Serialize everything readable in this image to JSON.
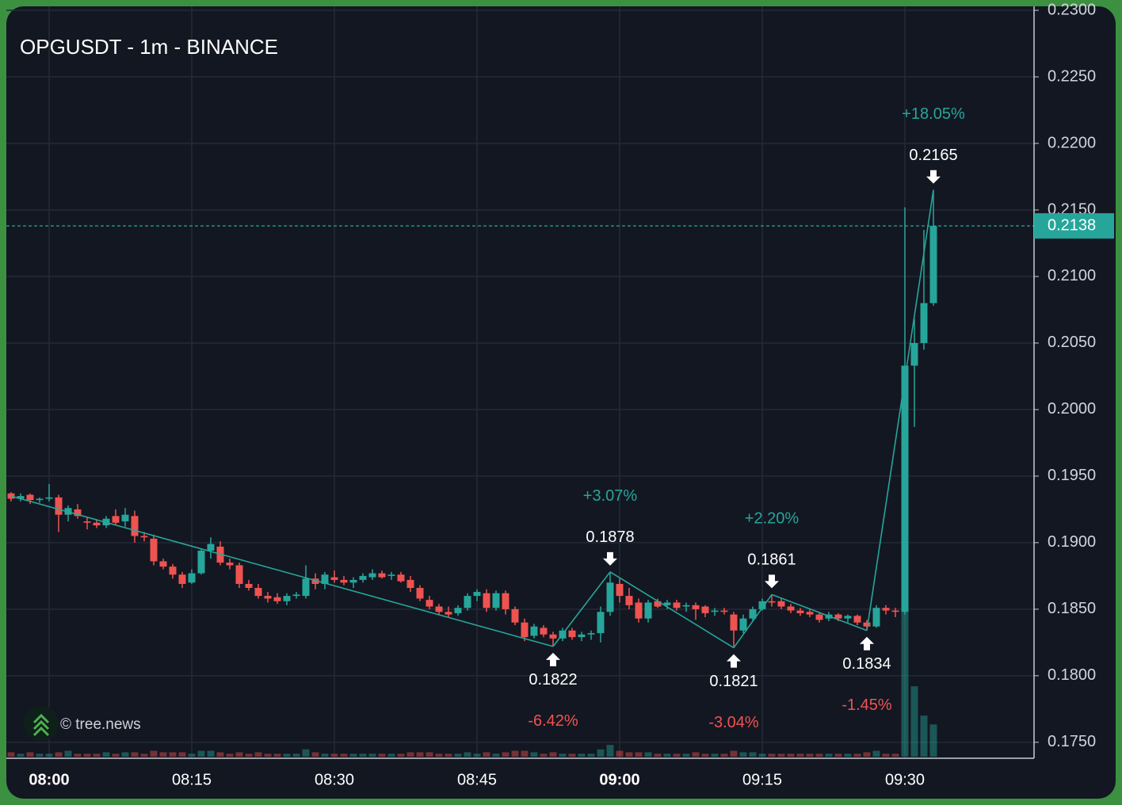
{
  "chart_data": {
    "type": "candlestick",
    "title": "OPGUSDT - 1m - BINANCE",
    "categories": [
      null,
      null,
      null,
      null,
      "08:00",
      null,
      null,
      null,
      null,
      null,
      null,
      null,
      null,
      null,
      null,
      null,
      null,
      null,
      null,
      "08:15",
      null,
      null,
      null,
      null,
      null,
      null,
      null,
      null,
      null,
      null,
      null,
      null,
      null,
      null,
      "08:30",
      null,
      null,
      null,
      null,
      null,
      null,
      null,
      null,
      null,
      null,
      null,
      null,
      null,
      null,
      "08:45",
      null,
      null,
      null,
      null,
      null,
      null,
      null,
      null,
      null,
      null,
      null,
      null,
      null,
      null,
      "09:00",
      null,
      null,
      null,
      null,
      null,
      null,
      null,
      null,
      null,
      null,
      null,
      null,
      null,
      null,
      "09:15",
      null,
      null,
      null,
      null,
      null,
      null,
      null,
      null,
      null,
      null,
      null,
      null,
      null,
      null,
      "09:30",
      null,
      null,
      null
    ],
    "ohlc": [
      [
        0.1937,
        0.1938,
        0.1931,
        0.1933
      ],
      [
        0.1933,
        0.1937,
        0.1931,
        0.1935
      ],
      [
        0.1936,
        0.1937,
        0.1929,
        0.1932
      ],
      [
        0.1932,
        0.1934,
        0.193,
        0.1933
      ],
      [
        0.1933,
        0.1944,
        0.1931,
        0.1934
      ],
      [
        0.1934,
        0.1936,
        0.1908,
        0.1921
      ],
      [
        0.1921,
        0.1928,
        0.1916,
        0.1926
      ],
      [
        0.1925,
        0.1929,
        0.1918,
        0.192
      ],
      [
        0.1916,
        0.1919,
        0.191,
        0.1915
      ],
      [
        0.1915,
        0.1917,
        0.1911,
        0.1913
      ],
      [
        0.1913,
        0.192,
        0.1911,
        0.1918
      ],
      [
        0.192,
        0.1925,
        0.1913,
        0.1915
      ],
      [
        0.1916,
        0.1926,
        0.1912,
        0.1921
      ],
      [
        0.192,
        0.1924,
        0.19,
        0.1905
      ],
      [
        0.1905,
        0.1908,
        0.1901,
        0.1904
      ],
      [
        0.1903,
        0.1906,
        0.1883,
        0.1886
      ],
      [
        0.1886,
        0.1888,
        0.188,
        0.1882
      ],
      [
        0.1882,
        0.1884,
        0.1873,
        0.1876
      ],
      [
        0.1876,
        0.1878,
        0.1866,
        0.1869
      ],
      [
        0.187,
        0.188,
        0.1869,
        0.1877
      ],
      [
        0.1877,
        0.1895,
        0.1876,
        0.1894
      ],
      [
        0.1894,
        0.1904,
        0.1888,
        0.1899
      ],
      [
        0.1897,
        0.1901,
        0.1883,
        0.1885
      ],
      [
        0.1885,
        0.1888,
        0.188,
        0.1883
      ],
      [
        0.1883,
        0.1885,
        0.1866,
        0.1869
      ],
      [
        0.1869,
        0.1872,
        0.1864,
        0.1866
      ],
      [
        0.1866,
        0.1869,
        0.1858,
        0.186
      ],
      [
        0.186,
        0.1863,
        0.1855,
        0.1858
      ],
      [
        0.1859,
        0.1862,
        0.1854,
        0.1856
      ],
      [
        0.1856,
        0.1862,
        0.1853,
        0.186
      ],
      [
        0.186,
        0.1863,
        0.1858,
        0.1861
      ],
      [
        0.186,
        0.1883,
        0.1858,
        0.1873
      ],
      [
        0.1873,
        0.1877,
        0.1865,
        0.1869
      ],
      [
        0.1869,
        0.1878,
        0.1865,
        0.1876
      ],
      [
        0.1874,
        0.1879,
        0.187,
        0.1872
      ],
      [
        0.1872,
        0.1875,
        0.1868,
        0.187
      ],
      [
        0.187,
        0.1874,
        0.1866,
        0.1872
      ],
      [
        0.1872,
        0.1877,
        0.187,
        0.1875
      ],
      [
        0.1874,
        0.188,
        0.1872,
        0.1877
      ],
      [
        0.1877,
        0.1879,
        0.1873,
        0.1874
      ],
      [
        0.1875,
        0.1878,
        0.1872,
        0.1876
      ],
      [
        0.1876,
        0.1878,
        0.187,
        0.1871
      ],
      [
        0.1872,
        0.1875,
        0.1863,
        0.1866
      ],
      [
        0.1866,
        0.1868,
        0.1856,
        0.1858
      ],
      [
        0.1857,
        0.186,
        0.185,
        0.1852
      ],
      [
        0.1852,
        0.1854,
        0.1846,
        0.1848
      ],
      [
        0.1848,
        0.1852,
        0.1844,
        0.1846
      ],
      [
        0.1847,
        0.1853,
        0.1845,
        0.1851
      ],
      [
        0.1851,
        0.1862,
        0.1849,
        0.186
      ],
      [
        0.186,
        0.1865,
        0.1856,
        0.1863
      ],
      [
        0.1862,
        0.1865,
        0.1848,
        0.1851
      ],
      [
        0.1851,
        0.1864,
        0.1849,
        0.1862
      ],
      [
        0.1862,
        0.1864,
        0.1846,
        0.185
      ],
      [
        0.185,
        0.1852,
        0.1838,
        0.184
      ],
      [
        0.184,
        0.1843,
        0.1826,
        0.1829
      ],
      [
        0.183,
        0.1839,
        0.1828,
        0.1837
      ],
      [
        0.1836,
        0.1838,
        0.1829,
        0.1831
      ],
      [
        0.1831,
        0.1833,
        0.1822,
        0.1828
      ],
      [
        0.1828,
        0.1836,
        0.1826,
        0.1834
      ],
      [
        0.1834,
        0.1836,
        0.1827,
        0.1829
      ],
      [
        0.1829,
        0.1833,
        0.1826,
        0.1831
      ],
      [
        0.1831,
        0.1834,
        0.1827,
        0.1832
      ],
      [
        0.1832,
        0.1852,
        0.1825,
        0.1848
      ],
      [
        0.1848,
        0.1878,
        0.1845,
        0.187
      ],
      [
        0.1869,
        0.1873,
        0.1855,
        0.186
      ],
      [
        0.186,
        0.1866,
        0.185,
        0.1853
      ],
      [
        0.1855,
        0.1858,
        0.184,
        0.1843
      ],
      [
        0.1843,
        0.1857,
        0.184,
        0.1855
      ],
      [
        0.1856,
        0.1858,
        0.1851,
        0.1852
      ],
      [
        0.1853,
        0.1857,
        0.185,
        0.1855
      ],
      [
        0.1855,
        0.1857,
        0.1849,
        0.1851
      ],
      [
        0.1852,
        0.1855,
        0.1848,
        0.1853
      ],
      [
        0.1853,
        0.1855,
        0.1842,
        0.185
      ],
      [
        0.1852,
        0.1853,
        0.1844,
        0.1847
      ],
      [
        0.1848,
        0.1851,
        0.1845,
        0.1849
      ],
      [
        0.1849,
        0.1851,
        0.1846,
        0.1848
      ],
      [
        0.1846,
        0.1848,
        0.1821,
        0.1834
      ],
      [
        0.1834,
        0.1846,
        0.1832,
        0.1843
      ],
      [
        0.1843,
        0.1852,
        0.1841,
        0.185
      ],
      [
        0.185,
        0.1858,
        0.1849,
        0.1856
      ],
      [
        0.1856,
        0.1861,
        0.1852,
        0.1855
      ],
      [
        0.1856,
        0.1858,
        0.185,
        0.1852
      ],
      [
        0.1852,
        0.1854,
        0.1847,
        0.1849
      ],
      [
        0.1849,
        0.1851,
        0.1845,
        0.1847
      ],
      [
        0.1848,
        0.185,
        0.1844,
        0.1846
      ],
      [
        0.1846,
        0.1848,
        0.184,
        0.1842
      ],
      [
        0.1843,
        0.1848,
        0.1841,
        0.1846
      ],
      [
        0.1846,
        0.1847,
        0.1841,
        0.1843
      ],
      [
        0.1843,
        0.1846,
        0.184,
        0.1845
      ],
      [
        0.1845,
        0.1846,
        0.1838,
        0.184
      ],
      [
        0.184,
        0.1842,
        0.1834,
        0.1837
      ],
      [
        0.1837,
        0.1853,
        0.1836,
        0.1851
      ],
      [
        0.1851,
        0.1853,
        0.1846,
        0.1849
      ],
      [
        0.1849,
        0.1851,
        0.1844,
        0.1848
      ],
      [
        0.1848,
        0.2152,
        0.1846,
        0.2033
      ],
      [
        0.2033,
        0.2068,
        0.1987,
        0.205
      ],
      [
        0.205,
        0.2135,
        0.2045,
        0.208
      ],
      [
        0.208,
        0.2165,
        0.2078,
        0.2138
      ]
    ],
    "volume": [
      3,
      2,
      3,
      2,
      2,
      3,
      4,
      2,
      2,
      2,
      3,
      2,
      3,
      3,
      2,
      4,
      3,
      3,
      3,
      2,
      4,
      4,
      3,
      2,
      3,
      2,
      3,
      2,
      2,
      2,
      2,
      5,
      3,
      2,
      2,
      2,
      2,
      2,
      2,
      2,
      2,
      2,
      3,
      3,
      3,
      2,
      2,
      2,
      3,
      2,
      3,
      2,
      3,
      4,
      4,
      3,
      2,
      3,
      2,
      2,
      2,
      2,
      5,
      8,
      4,
      3,
      3,
      3,
      2,
      2,
      2,
      2,
      3,
      2,
      2,
      2,
      4,
      3,
      3,
      2,
      2,
      2,
      2,
      2,
      2,
      2,
      2,
      2,
      2,
      2,
      3,
      4,
      2,
      2,
      100,
      48,
      28,
      22
    ],
    "up_color": "#26a69a",
    "down_color": "#ef5350",
    "zigzag": [
      0.1935,
      null,
      null,
      null,
      null,
      null,
      null,
      null,
      null,
      null,
      null,
      null,
      null,
      null,
      null,
      null,
      null,
      null,
      null,
      null,
      null,
      null,
      null,
      null,
      null,
      null,
      null,
      null,
      null,
      null,
      null,
      null,
      null,
      null,
      null,
      null,
      null,
      null,
      null,
      null,
      null,
      null,
      null,
      null,
      null,
      null,
      null,
      null,
      null,
      null,
      null,
      null,
      null,
      null,
      null,
      null,
      null,
      0.1822,
      null,
      null,
      null,
      null,
      null,
      0.1878,
      null,
      null,
      null,
      null,
      null,
      null,
      null,
      null,
      null,
      null,
      null,
      null,
      0.1821,
      null,
      null,
      null,
      0.1861,
      null,
      null,
      null,
      null,
      null,
      null,
      null,
      null,
      null,
      0.1834,
      null,
      null,
      null,
      null,
      null,
      null,
      0.2165
    ],
    "changes": [
      null,
      null,
      null,
      null,
      null,
      null,
      null,
      null,
      null,
      null,
      null,
      null,
      null,
      null,
      null,
      null,
      null,
      null,
      null,
      null,
      null,
      null,
      null,
      null,
      null,
      null,
      null,
      null,
      null,
      null,
      null,
      null,
      null,
      null,
      null,
      null,
      null,
      null,
      null,
      null,
      null,
      null,
      null,
      null,
      null,
      null,
      null,
      null,
      null,
      null,
      null,
      null,
      null,
      null,
      null,
      null,
      null,
      -6.42,
      null,
      null,
      null,
      null,
      null,
      3.07,
      null,
      null,
      null,
      null,
      null,
      null,
      null,
      null,
      null,
      null,
      null,
      null,
      -3.04,
      null,
      null,
      null,
      2.2,
      null,
      null,
      null,
      null,
      null,
      null,
      null,
      null,
      null,
      -1.45,
      null,
      null,
      null,
      null,
      null,
      null,
      18.05
    ],
    "change_labels": [
      null,
      null,
      null,
      null,
      null,
      null,
      null,
      null,
      null,
      null,
      null,
      null,
      null,
      null,
      null,
      null,
      null,
      null,
      null,
      null,
      null,
      null,
      null,
      null,
      null,
      null,
      null,
      null,
      null,
      null,
      null,
      null,
      null,
      null,
      null,
      null,
      null,
      null,
      null,
      null,
      null,
      null,
      null,
      null,
      null,
      null,
      null,
      null,
      null,
      null,
      null,
      null,
      null,
      null,
      null,
      null,
      null,
      "-6.42%",
      null,
      null,
      null,
      null,
      null,
      "+3.07%",
      null,
      null,
      null,
      null,
      null,
      null,
      null,
      null,
      null,
      null,
      null,
      null,
      "-3.04%",
      null,
      null,
      null,
      "+2.20%",
      null,
      null,
      null,
      null,
      null,
      null,
      null,
      null,
      null,
      "-1.45%",
      null,
      null,
      null,
      null,
      null,
      null,
      "+18.05%"
    ],
    "last_price": {
      "value": 0.2138,
      "label": "0.2138"
    },
    "ylim": [
      0.1738,
      0.2303
    ],
    "yticks": [
      {
        "value": 0.23,
        "label": "0.2300"
      },
      {
        "value": 0.225,
        "label": "0.2250"
      },
      {
        "value": 0.22,
        "label": "0.2200"
      },
      {
        "value": 0.215,
        "label": "0.2150"
      },
      {
        "value": 0.21,
        "label": "0.2100"
      },
      {
        "value": 0.205,
        "label": "0.2050"
      },
      {
        "value": 0.2,
        "label": "0.2000"
      },
      {
        "value": 0.195,
        "label": "0.1950"
      },
      {
        "value": 0.19,
        "label": "0.1900"
      },
      {
        "value": 0.185,
        "label": "0.1850"
      },
      {
        "value": 0.18,
        "label": "0.1800"
      },
      {
        "value": 0.175,
        "label": "0.1750"
      }
    ],
    "grid": true
  },
  "watermark": "© tree.news"
}
